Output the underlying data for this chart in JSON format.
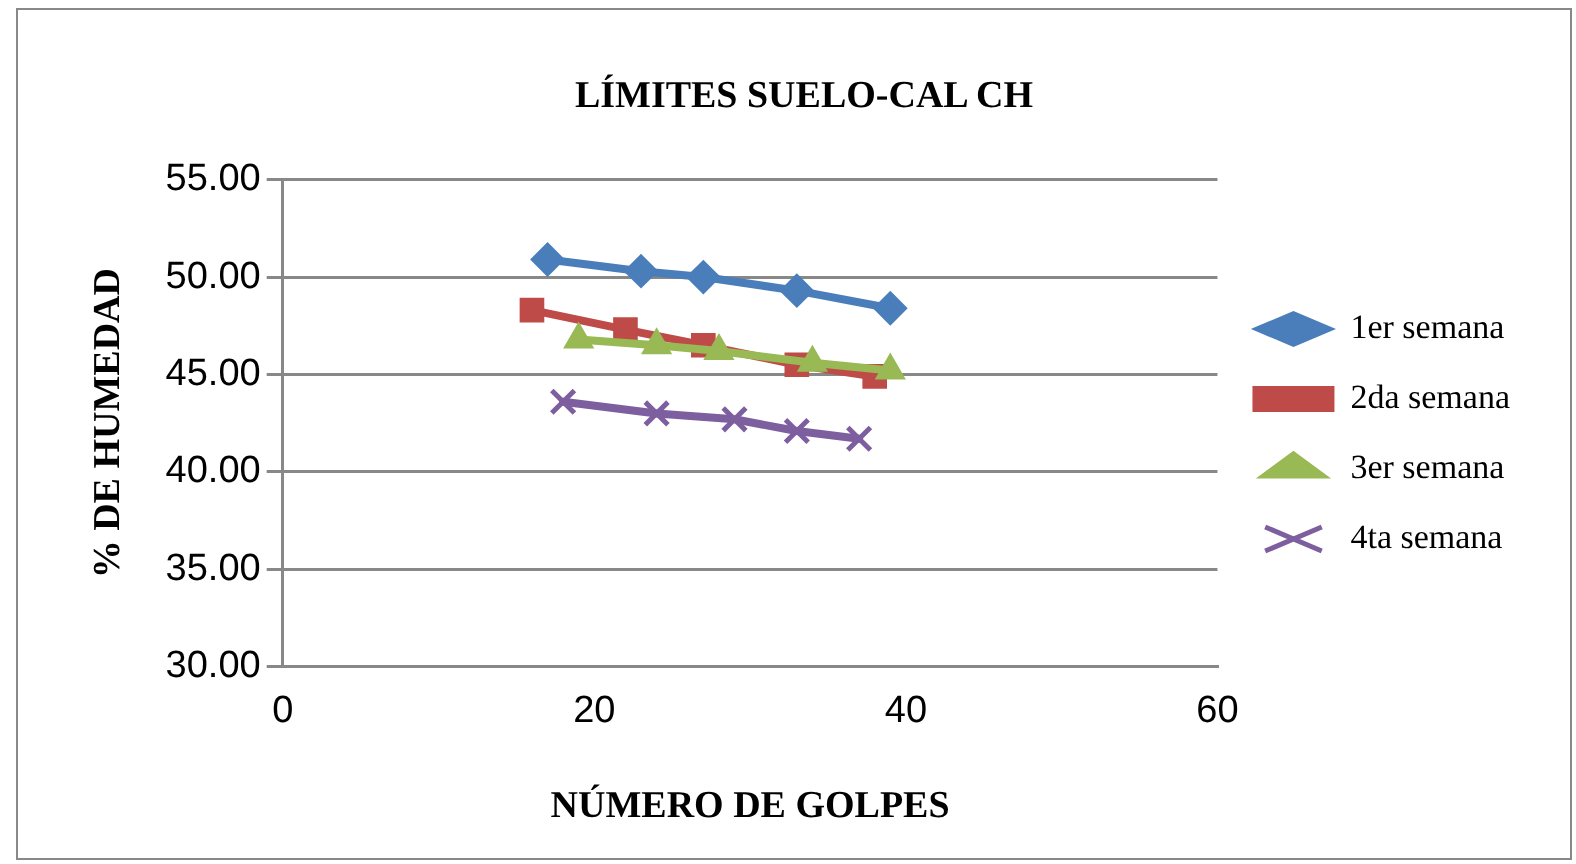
{
  "chart_data": {
    "type": "line",
    "title": "LÍMITES SUELO-CAL CH",
    "xlabel": "NÚMERO DE GOLPES",
    "ylabel": "% DE HUMEDAD",
    "xlim": [
      0,
      60
    ],
    "xticks": [
      0,
      20,
      40,
      60
    ],
    "ylim": [
      30,
      55
    ],
    "yticks": [
      {
        "value": 30,
        "label": "30.00"
      },
      {
        "value": 35,
        "label": "35.00"
      },
      {
        "value": 40,
        "label": "40.00"
      },
      {
        "value": 45,
        "label": "45.00"
      },
      {
        "value": 50,
        "label": "50.00"
      },
      {
        "value": 55,
        "label": "55.00"
      }
    ],
    "grid": "y",
    "legend": "right",
    "series": [
      {
        "name": "1er semana",
        "color": "#4a7ebb",
        "marker": "diamond",
        "x": [
          17,
          23,
          27,
          33,
          39
        ],
        "values": [
          50.9,
          50.3,
          50.0,
          49.3,
          48.4
        ]
      },
      {
        "name": "2da semana",
        "color": "#be4b48",
        "marker": "square",
        "x": [
          16,
          22,
          27,
          33,
          38
        ],
        "values": [
          48.3,
          47.3,
          46.5,
          45.5,
          44.9
        ]
      },
      {
        "name": "3er semana",
        "color": "#98b954",
        "marker": "triangle",
        "x": [
          19,
          24,
          28,
          34,
          39
        ],
        "values": [
          46.8,
          46.5,
          46.2,
          45.6,
          45.2
        ]
      },
      {
        "name": "4ta semana",
        "color": "#7d5fa0",
        "marker": "cross",
        "x": [
          18,
          24,
          29,
          33,
          37
        ],
        "values": [
          43.6,
          43.0,
          42.7,
          42.1,
          41.7
        ]
      }
    ]
  }
}
